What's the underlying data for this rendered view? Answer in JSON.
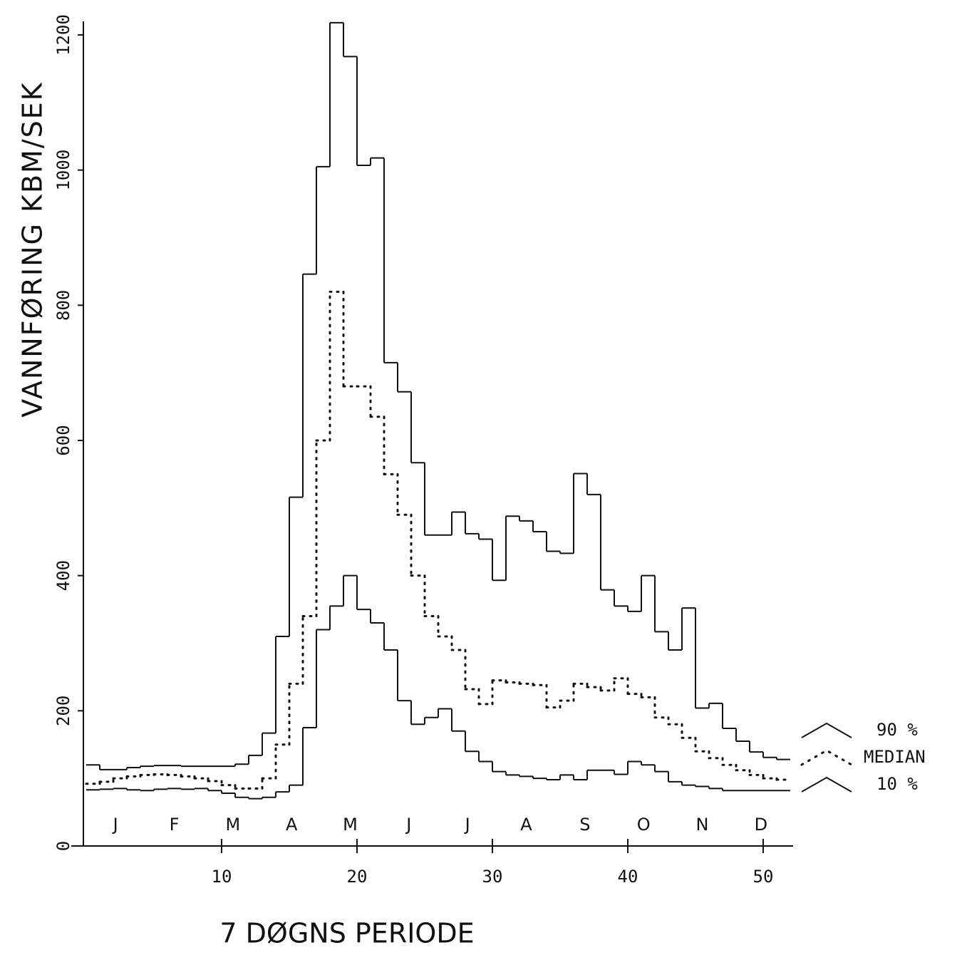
{
  "chart_data": {
    "type": "step",
    "x_label": "7 DØGNS PERIODE",
    "y_label": "VANNFØRING  KBM/SEK",
    "months": [
      "J",
      "F",
      "M",
      "A",
      "M",
      "J",
      "J",
      "A",
      "S",
      "O",
      "N",
      "D"
    ],
    "x": [
      1,
      2,
      3,
      4,
      5,
      6,
      7,
      8,
      9,
      10,
      11,
      12,
      13,
      14,
      15,
      16,
      17,
      18,
      19,
      20,
      21,
      22,
      23,
      24,
      25,
      26,
      27,
      28,
      29,
      30,
      31,
      32,
      33,
      34,
      35,
      36,
      37,
      38,
      39,
      40,
      41,
      42,
      43,
      44,
      45,
      46,
      47,
      48,
      49,
      50,
      51,
      52
    ],
    "xlim": [
      0,
      52
    ],
    "xticks": [
      10,
      20,
      30,
      40,
      50
    ],
    "ylim": [
      0,
      1220
    ],
    "yticks": [
      0,
      200,
      400,
      600,
      800,
      1000,
      1200
    ],
    "series": [
      {
        "name": "90 %",
        "color": "#111111",
        "style": "solid",
        "values": [
          120,
          113,
          113,
          116,
          118,
          119,
          119,
          118,
          118,
          118,
          118,
          121,
          134,
          167,
          310,
          516,
          846,
          1005,
          1218,
          1168,
          1007,
          1018,
          715,
          672,
          567,
          460,
          460,
          494,
          462,
          454,
          393,
          488,
          481,
          465,
          436,
          433,
          551,
          520,
          379,
          355,
          347,
          400,
          317,
          290,
          352,
          204,
          211,
          174,
          155,
          139,
          131,
          128
        ]
      },
      {
        "name": "MEDIAN",
        "color": "#111111",
        "style": "dotted",
        "values": [
          92,
          95,
          100,
          103,
          105,
          106,
          105,
          103,
          100,
          96,
          90,
          85,
          85,
          100,
          150,
          240,
          340,
          600,
          820,
          680,
          680,
          635,
          550,
          490,
          400,
          340,
          310,
          290,
          232,
          210,
          245,
          242,
          240,
          238,
          205,
          215,
          240,
          235,
          230,
          248,
          225,
          220,
          190,
          180,
          160,
          140,
          130,
          120,
          112,
          105,
          100,
          98
        ]
      },
      {
        "name": "10 %",
        "color": "#111111",
        "style": "solid",
        "values": [
          83,
          84,
          85,
          83,
          82,
          84,
          85,
          84,
          85,
          82,
          78,
          72,
          70,
          72,
          80,
          90,
          175,
          320,
          355,
          400,
          350,
          330,
          290,
          215,
          180,
          190,
          203,
          170,
          140,
          125,
          110,
          105,
          103,
          100,
          98,
          105,
          98,
          112,
          112,
          106,
          125,
          120,
          110,
          95,
          90,
          88,
          85,
          82,
          82,
          82,
          82,
          82
        ]
      }
    ]
  }
}
